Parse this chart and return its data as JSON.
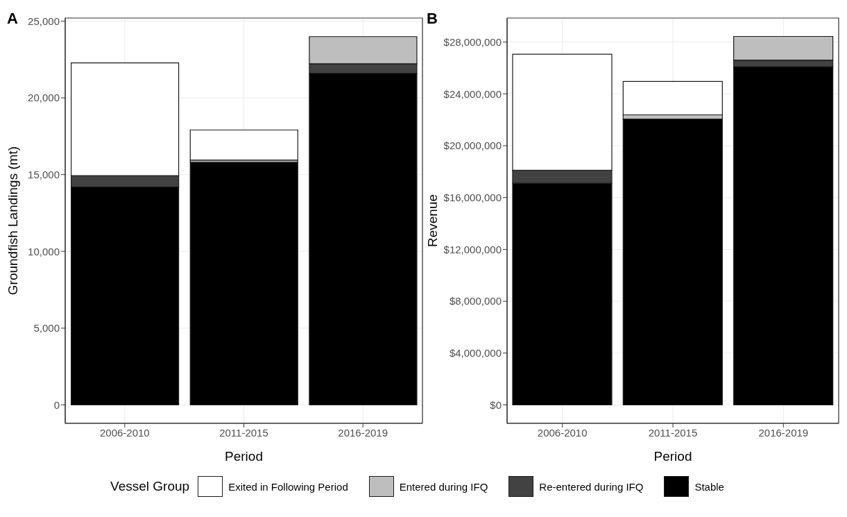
{
  "chart_data": [
    {
      "type": "bar",
      "title": "A",
      "xlabel": "Period",
      "ylabel": "Groundfish Landings (mt)",
      "categories": [
        "2006-2010",
        "2011-2015",
        "2016-2019"
      ],
      "stacked": true,
      "grid": true,
      "legend": "bottom",
      "legend_title": "Vessel Group",
      "ylim": [
        -1200,
        25200
      ],
      "yticks": [
        {
          "value": 0,
          "label": "0"
        },
        {
          "value": 5000,
          "label": "5,000"
        },
        {
          "value": 10000,
          "label": "10,000"
        },
        {
          "value": 15000,
          "label": "15,000"
        },
        {
          "value": 20000,
          "label": "20,000"
        },
        {
          "value": 25000,
          "label": "25,000"
        }
      ],
      "series": [
        {
          "name": "Stable",
          "color": "#000000",
          "values": [
            14200,
            15800,
            21600
          ]
        },
        {
          "name": "Re-entered during IFQ",
          "color": "#424242",
          "values": [
            730,
            0,
            620
          ]
        },
        {
          "name": "Entered during IFQ",
          "color": "#bebebe",
          "values": [
            0,
            150,
            1770
          ]
        },
        {
          "name": "Exited in Following Period",
          "color": "#ffffff",
          "values": [
            7350,
            1960,
            0
          ]
        }
      ]
    },
    {
      "type": "bar",
      "title": "B",
      "xlabel": "Period",
      "ylabel": "Revenue",
      "categories": [
        "2006-2010",
        "2011-2015",
        "2016-2019"
      ],
      "stacked": true,
      "grid": true,
      "ylim": [
        -1420000,
        29850000
      ],
      "yticks": [
        {
          "value": 0,
          "label": "$0"
        },
        {
          "value": 4000000,
          "label": "$4,000,000"
        },
        {
          "value": 8000000,
          "label": "$8,000,000"
        },
        {
          "value": 12000000,
          "label": "$12,000,000"
        },
        {
          "value": 16000000,
          "label": "$16,000,000"
        },
        {
          "value": 20000000,
          "label": "$20,000,000"
        },
        {
          "value": 24000000,
          "label": "$24,000,000"
        },
        {
          "value": 28000000,
          "label": "$28,000,000"
        }
      ],
      "series": [
        {
          "color": "#000000",
          "values": [
            17100000,
            22050000,
            26100000
          ]
        },
        {
          "color": "#424242",
          "values": [
            1000000,
            0,
            500000
          ]
        },
        {
          "color": "#bebebe",
          "values": [
            0,
            330000,
            1830000
          ]
        },
        {
          "color": "#ffffff",
          "values": [
            8960000,
            2580000,
            0
          ]
        }
      ]
    }
  ]
}
